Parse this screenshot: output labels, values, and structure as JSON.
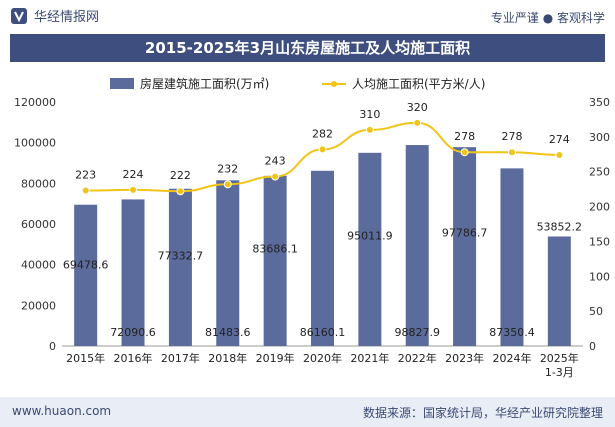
{
  "header": {
    "brand": "华经情报网",
    "tagline": "专业严谨 ● 客观科学"
  },
  "footer": {
    "url": "www.huaon.com",
    "source": "数据来源：国家统计局，华经产业研究院整理"
  },
  "colors": {
    "bar": "#5b6b9b",
    "line": "#f0c419",
    "title_bg": "#3e4f7f",
    "footer_bg": "#e9edf6"
  },
  "chart_data": {
    "type": "bar",
    "title": "2015-2025年3月山东房屋施工及人均施工面积",
    "categories": [
      "2015年",
      "2016年",
      "2017年",
      "2018年",
      "2019年",
      "2020年",
      "2021年",
      "2022年",
      "2023年",
      "2024年",
      "2025年\n1-3月"
    ],
    "series": [
      {
        "name": "房屋建筑施工面积(万㎡)",
        "type": "bar",
        "axis": "left",
        "values": [
          69478.6,
          72090.6,
          77332.7,
          81483.6,
          83686.1,
          86160.1,
          95011.9,
          98827.9,
          97786.7,
          87350.4,
          53852.2
        ],
        "labels": [
          "69478.6",
          "72090.6",
          "77332.7",
          "81483.6",
          "83686.1",
          "86160.1",
          "95011.9",
          "98827.9",
          "97786.7",
          "87350.4",
          "53852.2"
        ]
      },
      {
        "name": "人均施工面积(平方米/人)",
        "type": "line",
        "axis": "right",
        "values": [
          223,
          224,
          222,
          232,
          243,
          282,
          310,
          320,
          278,
          278,
          274
        ],
        "labels": [
          "223",
          "224",
          "222",
          "232",
          "243",
          "282",
          "310",
          "320",
          "278",
          "278",
          "274"
        ]
      }
    ],
    "y_left": {
      "min": 0,
      "max": 120000,
      "ticks": [
        "0",
        "20000",
        "40000",
        "60000",
        "80000",
        "100000",
        "120000"
      ]
    },
    "y_right": {
      "min": 0,
      "max": 350,
      "ticks": [
        "0",
        "50",
        "100",
        "150",
        "200",
        "250",
        "300",
        "350"
      ]
    },
    "legend_position": "top",
    "grid": false
  }
}
